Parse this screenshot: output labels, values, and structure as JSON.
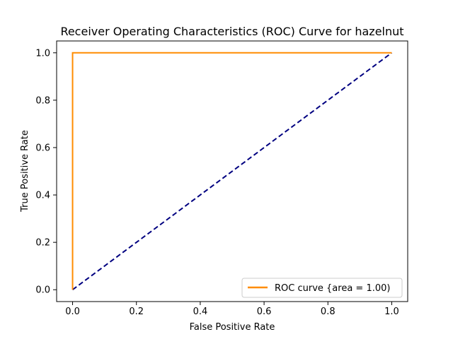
{
  "chart_data": {
    "type": "line",
    "title": "Receiver Operating Characteristics (ROC) Curve for hazelnut",
    "xlabel": "False Positive Rate",
    "ylabel": "True Positive Rate",
    "xlim": [
      -0.05,
      1.05
    ],
    "ylim": [
      -0.05,
      1.05
    ],
    "xticks": [
      "0.0",
      "0.2",
      "0.4",
      "0.6",
      "0.8",
      "1.0"
    ],
    "yticks": [
      "0.0",
      "0.2",
      "0.4",
      "0.6",
      "0.8",
      "1.0"
    ],
    "grid": false,
    "legend_position": "lower-right",
    "series": [
      {
        "name": "ROC curve {area = 1.00)",
        "color": "#ff8c00",
        "style": "solid",
        "x": [
          0.0,
          0.0,
          1.0
        ],
        "y": [
          0.0,
          1.0,
          1.0
        ]
      },
      {
        "color": "#000080",
        "style": "dashed",
        "x": [
          0.0,
          1.0
        ],
        "y": [
          0.0,
          1.0
        ]
      }
    ]
  }
}
